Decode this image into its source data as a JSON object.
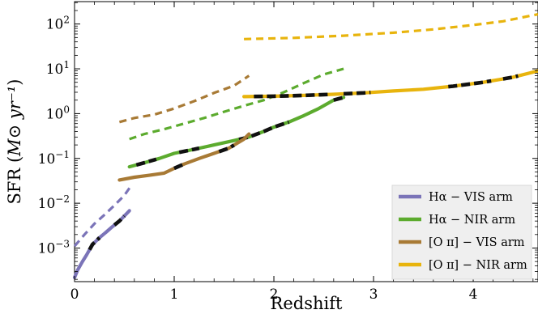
{
  "chart_data": {
    "type": "line",
    "xlabel": "Redshift",
    "ylabel_main": "SFR",
    "ylabel_unit": "M⊙ yr⁻¹",
    "yscale": "log",
    "xlim": [
      0,
      4.65
    ],
    "ylim_log10": [
      -3.75,
      2.5
    ],
    "x_ticks": [
      0,
      1,
      2,
      3,
      4
    ],
    "y_ticks": [
      {
        "exp": -3,
        "mant": "10",
        "sup": "−3"
      },
      {
        "exp": -2,
        "mant": "10",
        "sup": "−2"
      },
      {
        "exp": -1,
        "mant": "10",
        "sup": "−1"
      },
      {
        "exp": 0,
        "mant": "10",
        "sup": "0"
      },
      {
        "exp": 1,
        "mant": "10",
        "sup": "1"
      },
      {
        "exp": 2,
        "mant": "10",
        "sup": "2"
      }
    ],
    "legend_position": "lower-right",
    "series": [
      {
        "name": "Hα − VIS arm",
        "color": "#7b74b8",
        "solid": [
          [
            0,
            0.00022
          ],
          [
            0.03,
            0.00032
          ],
          [
            0.08,
            0.0005
          ],
          [
            0.12,
            0.0007
          ],
          [
            0.18,
            0.0012
          ],
          [
            0.25,
            0.0017
          ],
          [
            0.32,
            0.0023
          ],
          [
            0.38,
            0.003
          ],
          [
            0.45,
            0.004
          ],
          [
            0.5,
            0.0052
          ],
          [
            0.55,
            0.0068
          ]
        ],
        "dashed": [
          [
            0,
            0.0011
          ],
          [
            0.1,
            0.002
          ],
          [
            0.2,
            0.0035
          ],
          [
            0.3,
            0.0055
          ],
          [
            0.4,
            0.009
          ],
          [
            0.5,
            0.015
          ],
          [
            0.57,
            0.025
          ]
        ],
        "black_marks": [
          [
            0.15,
            0.25
          ],
          [
            0.4,
            0.5
          ]
        ]
      },
      {
        "name": "Hα − NIR arm",
        "color": "#5cab2e",
        "solid": [
          [
            0.55,
            0.065
          ],
          [
            0.7,
            0.08
          ],
          [
            0.85,
            0.1
          ],
          [
            1.0,
            0.13
          ],
          [
            1.2,
            0.16
          ],
          [
            1.4,
            0.2
          ],
          [
            1.6,
            0.25
          ],
          [
            1.75,
            0.3
          ],
          [
            1.9,
            0.4
          ],
          [
            2.0,
            0.5
          ],
          [
            2.15,
            0.65
          ],
          [
            2.3,
            0.9
          ],
          [
            2.45,
            1.3
          ],
          [
            2.6,
            2.0
          ],
          [
            2.7,
            2.3
          ]
        ],
        "dashed": [
          [
            0.55,
            0.27
          ],
          [
            0.7,
            0.35
          ],
          [
            0.9,
            0.45
          ],
          [
            1.1,
            0.6
          ],
          [
            1.3,
            0.8
          ],
          [
            1.5,
            1.1
          ],
          [
            1.7,
            1.5
          ],
          [
            1.9,
            2.0
          ],
          [
            2.1,
            3.0
          ],
          [
            2.3,
            4.8
          ],
          [
            2.5,
            7.5
          ],
          [
            2.7,
            10
          ]
        ],
        "black_marks": [
          [
            0.62,
            0.82
          ],
          [
            1.05,
            1.25
          ],
          [
            1.65,
            2.15
          ],
          [
            2.6,
            2.72
          ]
        ]
      },
      {
        "name": "[O ɪɪ] − VIS arm",
        "color": "#a87a35",
        "solid": [
          [
            0.45,
            0.033
          ],
          [
            0.6,
            0.038
          ],
          [
            0.75,
            0.042
          ],
          [
            0.9,
            0.047
          ],
          [
            1.0,
            0.06
          ],
          [
            1.1,
            0.075
          ],
          [
            1.25,
            0.1
          ],
          [
            1.4,
            0.13
          ],
          [
            1.55,
            0.17
          ],
          [
            1.7,
            0.27
          ],
          [
            1.75,
            0.35
          ]
        ],
        "dashed": [
          [
            0.45,
            0.65
          ],
          [
            0.6,
            0.8
          ],
          [
            0.8,
            0.95
          ],
          [
            1.0,
            1.3
          ],
          [
            1.2,
            1.9
          ],
          [
            1.4,
            2.9
          ],
          [
            1.6,
            4.2
          ],
          [
            1.75,
            7.0
          ]
        ],
        "black_marks": [
          [
            1.0,
            1.1
          ],
          [
            1.45,
            1.6
          ]
        ]
      },
      {
        "name": "[O ɪɪ] − NIR arm",
        "color": "#e8b40d",
        "solid": [
          [
            1.7,
            2.4
          ],
          [
            2.0,
            2.45
          ],
          [
            2.3,
            2.55
          ],
          [
            2.6,
            2.7
          ],
          [
            2.9,
            2.9
          ],
          [
            3.2,
            3.2
          ],
          [
            3.5,
            3.5
          ],
          [
            3.8,
            4.1
          ],
          [
            4.1,
            5.0
          ],
          [
            4.4,
            6.5
          ],
          [
            4.65,
            9.0
          ]
        ],
        "dashed": [
          [
            1.7,
            46
          ],
          [
            2.2,
            49
          ],
          [
            2.7,
            55
          ],
          [
            3.2,
            64
          ],
          [
            3.6,
            76
          ],
          [
            4.0,
            95
          ],
          [
            4.3,
            115
          ],
          [
            4.65,
            165
          ]
        ],
        "black_marks": [
          [
            1.8,
            2.55
          ],
          [
            2.7,
            2.97
          ],
          [
            3.75,
            4.18
          ],
          [
            4.3,
            4.45
          ]
        ]
      }
    ]
  }
}
